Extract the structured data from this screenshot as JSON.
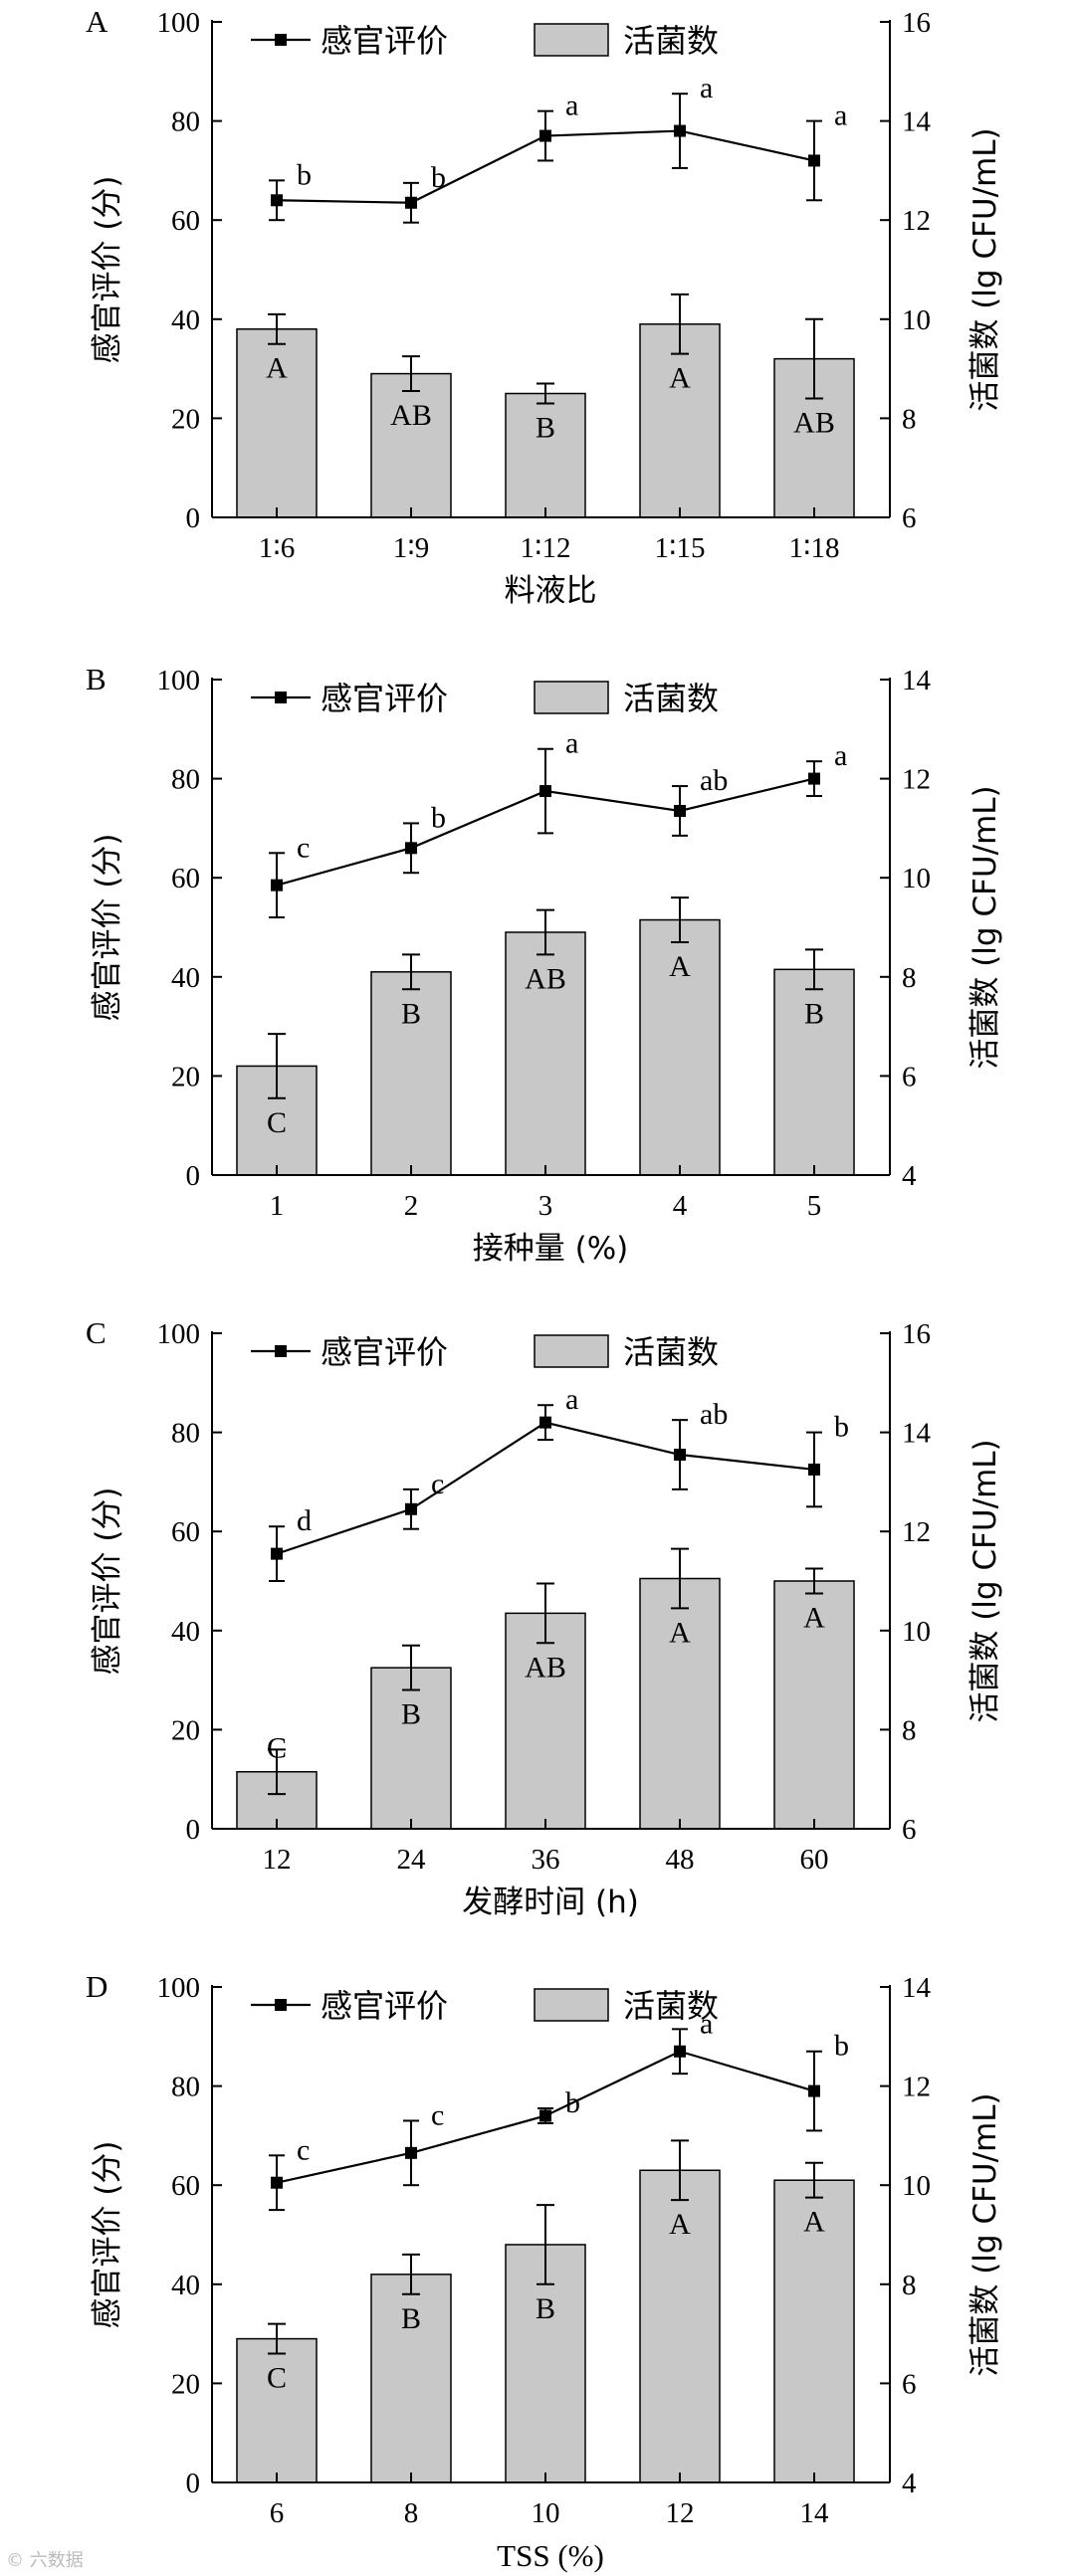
{
  "watermark": "© 六数据",
  "legend": {
    "line_label": "感官评价",
    "bar_label": "活菌数"
  },
  "chart_data": [
    {
      "type": "bar",
      "panel": "A",
      "xlabel": "料液比",
      "ylabel_left": "感官评价 (分)",
      "ylabel_right": "活菌数 (lg CFU/mL)",
      "categories": [
        "1∶6",
        "1∶9",
        "1∶12",
        "1∶15",
        "1∶18"
      ],
      "left_ylim": [
        0,
        100
      ],
      "left_ticks": [
        0,
        20,
        40,
        60,
        80,
        100
      ],
      "right_ylim": [
        6,
        16
      ],
      "right_ticks": [
        6,
        8,
        10,
        12,
        14,
        16
      ],
      "series": [
        {
          "name": "活菌数",
          "axis": "right",
          "kind": "bar",
          "values": [
            9.8,
            8.9,
            8.5,
            9.9,
            9.2
          ],
          "errors": [
            0.3,
            0.35,
            0.2,
            0.6,
            0.8
          ],
          "labels": [
            "A",
            "AB",
            "B",
            "A",
            "AB"
          ]
        },
        {
          "name": "感官评价",
          "axis": "left",
          "kind": "line",
          "values": [
            64,
            63.5,
            77,
            78,
            72
          ],
          "errors": [
            4,
            4,
            5,
            7.5,
            8
          ],
          "labels": [
            "b",
            "b",
            "a",
            "a",
            "a"
          ]
        }
      ]
    },
    {
      "type": "bar",
      "panel": "B",
      "xlabel": "接种量 (%)",
      "ylabel_left": "感官评价 (分)",
      "ylabel_right": "活菌数 (lg CFU/mL)",
      "categories": [
        "1",
        "2",
        "3",
        "4",
        "5"
      ],
      "left_ylim": [
        0,
        100
      ],
      "left_ticks": [
        0,
        20,
        40,
        60,
        80,
        100
      ],
      "right_ylim": [
        4,
        14
      ],
      "right_ticks": [
        4,
        6,
        8,
        10,
        12,
        14
      ],
      "series": [
        {
          "name": "活菌数",
          "axis": "right",
          "kind": "bar",
          "values": [
            6.2,
            8.1,
            8.9,
            9.15,
            8.15
          ],
          "errors": [
            0.65,
            0.35,
            0.45,
            0.45,
            0.4
          ],
          "labels": [
            "C",
            "B",
            "AB",
            "A",
            "B"
          ]
        },
        {
          "name": "感官评价",
          "axis": "left",
          "kind": "line",
          "values": [
            58.5,
            66,
            77.5,
            73.5,
            80
          ],
          "errors": [
            6.5,
            5,
            8.5,
            5,
            3.5
          ],
          "labels": [
            "c",
            "b",
            "a",
            "ab",
            "a"
          ]
        }
      ]
    },
    {
      "type": "bar",
      "panel": "C",
      "xlabel": "发酵时间 (h)",
      "ylabel_left": "感官评价 (分)",
      "ylabel_right": "活菌数 (lg CFU/mL)",
      "categories": [
        "12",
        "24",
        "36",
        "48",
        "60"
      ],
      "left_ylim": [
        0,
        100
      ],
      "left_ticks": [
        0,
        20,
        40,
        60,
        80,
        100
      ],
      "right_ylim": [
        6,
        16
      ],
      "right_ticks": [
        6,
        8,
        10,
        12,
        14,
        16
      ],
      "series": [
        {
          "name": "活菌数",
          "axis": "right",
          "kind": "bar",
          "values": [
            7.15,
            9.25,
            10.35,
            11.05,
            11.0
          ],
          "errors": [
            0.45,
            0.45,
            0.6,
            0.6,
            0.25
          ],
          "labels": [
            "C",
            "B",
            "AB",
            "A",
            "A"
          ]
        },
        {
          "name": "感官评价",
          "axis": "left",
          "kind": "line",
          "values": [
            55.5,
            64.5,
            82,
            75.5,
            72.5
          ],
          "errors": [
            5.5,
            4,
            3.5,
            7,
            7.5
          ],
          "labels": [
            "d",
            "c",
            "a",
            "ab",
            "b"
          ]
        }
      ]
    },
    {
      "type": "bar",
      "panel": "D",
      "xlabel": "TSS (%)",
      "ylabel_left": "感官评价 (分)",
      "ylabel_right": "活菌数 (lg CFU/mL)",
      "categories": [
        "6",
        "8",
        "10",
        "12",
        "14"
      ],
      "left_ylim": [
        0,
        100
      ],
      "left_ticks": [
        0,
        20,
        40,
        60,
        80,
        100
      ],
      "right_ylim": [
        4,
        14
      ],
      "right_ticks": [
        4,
        6,
        8,
        10,
        12,
        14
      ],
      "series": [
        {
          "name": "活菌数",
          "axis": "right",
          "kind": "bar",
          "values": [
            6.9,
            8.2,
            8.8,
            10.3,
            10.1
          ],
          "errors": [
            0.3,
            0.4,
            0.8,
            0.6,
            0.35
          ],
          "labels": [
            "C",
            "B",
            "B",
            "A",
            "A"
          ]
        },
        {
          "name": "感官评价",
          "axis": "left",
          "kind": "line",
          "values": [
            60.5,
            66.5,
            74,
            87,
            79
          ],
          "errors": [
            5.5,
            6.5,
            1.5,
            4.5,
            8
          ],
          "labels": [
            "c",
            "c",
            "b",
            "a",
            "b"
          ]
        }
      ]
    }
  ]
}
